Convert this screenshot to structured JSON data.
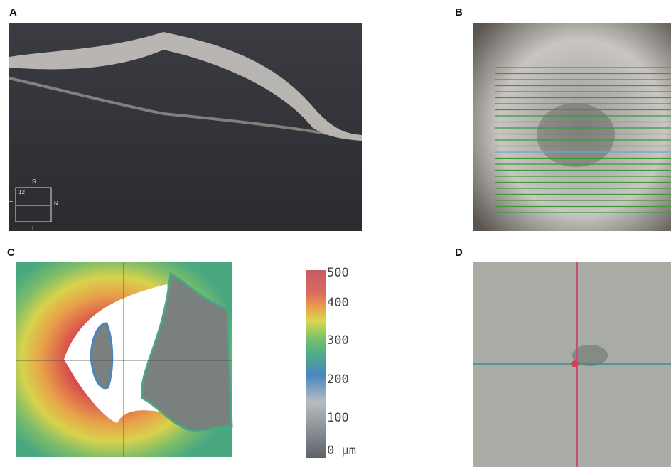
{
  "panels": [
    {
      "label": "A",
      "orientation": {
        "superior": "S",
        "temporal": "T",
        "nasal": "N",
        "inferior": "I",
        "scan": "12"
      }
    },
    {
      "label": "B"
    },
    {
      "label": "C",
      "colorbar": {
        "ticks": [
          "500",
          "400",
          "300",
          "200",
          "100",
          "0 μm"
        ]
      }
    },
    {
      "label": "D"
    }
  ]
}
